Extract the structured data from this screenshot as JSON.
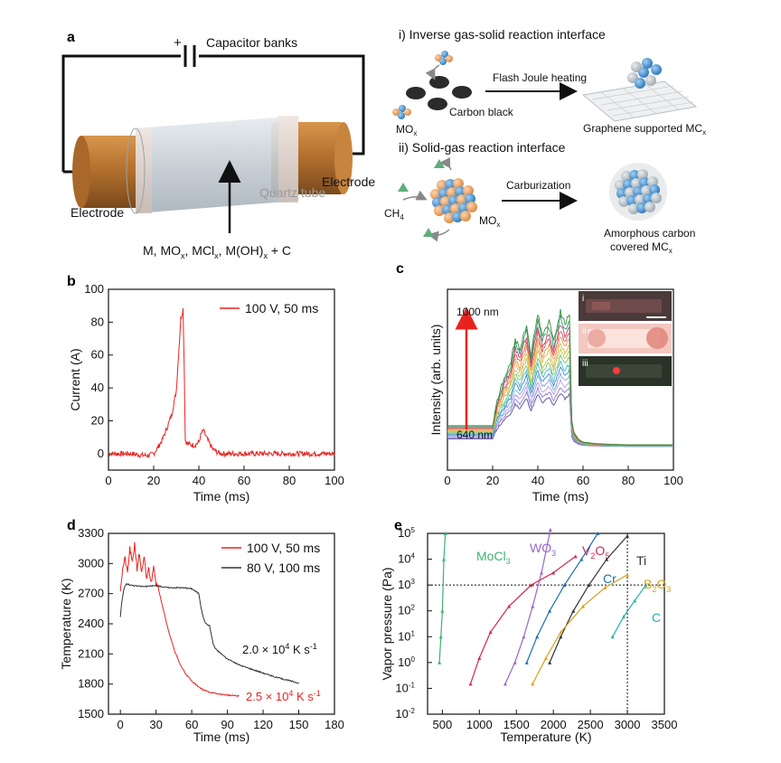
{
  "panel_a": {
    "label": "a",
    "capacitor_label": "Capacitor banks",
    "plus_sign": "+",
    "electrode_left": "Electrode",
    "electrode_right": "Electrode",
    "quartz_tube": "Quartz tube",
    "reactants": "M, MO",
    "reactants_parts": [
      "M, MO",
      "x",
      ", MCl",
      "x",
      ", M(OH)",
      "x",
      " + C"
    ],
    "route_i_title": "i) Inverse gas-solid reaction interface",
    "route_i_arrow": "Flash Joule heating",
    "route_i_carbon": "Carbon black",
    "route_i_mox": "MO",
    "route_i_product": "Graphene supported MC",
    "route_ii_title": "ii) Solid-gas reaction interface",
    "route_ii_arrow": "Carburization",
    "route_ii_ch4": "CH",
    "route_ii_mox": "MO",
    "route_ii_product_1": "Amorphous carbon",
    "route_ii_product_2": "covered MC",
    "sub_x": "x",
    "sub_4": "4",
    "colors": {
      "copper": "#b5722f",
      "tube": "#c9d1d8",
      "blue": "#3d8bd1",
      "orange": "#e9a46a",
      "dark": "#222222"
    }
  },
  "panel_b": {
    "label": "b"
  },
  "panel_c": {
    "label": "c",
    "top_label": "1000 nm",
    "bottom_label": "640 nm",
    "insets": [
      "i",
      "ii",
      "iii"
    ]
  },
  "panel_d": {
    "label": "d"
  },
  "panel_e": {
    "label": "e"
  },
  "chart_data": [
    {
      "id": "b",
      "type": "line",
      "xlabel": "Time (ms)",
      "ylabel": "Current (A)",
      "xlim": [
        0,
        100
      ],
      "ylim": [
        -10,
        100
      ],
      "xticks": [
        0,
        20,
        40,
        60,
        80,
        100
      ],
      "yticks": [
        0,
        20,
        40,
        60,
        80,
        100
      ],
      "series": [
        {
          "name": "100 V, 50 ms",
          "color": "#e8231f",
          "x": [
            0,
            5,
            10,
            15,
            18,
            20,
            22,
            24,
            26,
            28,
            30,
            31,
            32,
            33,
            33.5,
            34,
            35,
            38,
            40,
            41,
            42,
            43,
            44,
            46,
            48,
            50,
            55,
            60,
            70,
            80,
            90,
            100
          ],
          "y": [
            0,
            0,
            0,
            -1,
            -1,
            0,
            4,
            9,
            16,
            24,
            38,
            60,
            82,
            88,
            55,
            8,
            6,
            5,
            7,
            12,
            14,
            11,
            8,
            3,
            1,
            0,
            0,
            0,
            0,
            0,
            0,
            0
          ]
        }
      ]
    },
    {
      "id": "c",
      "type": "line",
      "xlabel": "Time (ms)",
      "ylabel": "Intensity (arb. units)",
      "xlim": [
        0,
        100
      ],
      "xticks": [
        0,
        20,
        40,
        60,
        80,
        100
      ],
      "series_count": 14,
      "x": [
        0,
        10,
        20,
        22,
        25,
        28,
        30,
        32,
        35,
        37,
        40,
        42,
        45,
        47,
        50,
        52,
        54,
        55,
        56,
        58,
        60,
        65,
        70,
        80,
        90,
        100
      ],
      "profile": [
        0.16,
        0.16,
        0.16,
        0.35,
        0.5,
        0.62,
        0.8,
        0.72,
        0.9,
        0.68,
        0.98,
        0.82,
        0.92,
        0.78,
        1.0,
        0.9,
        0.98,
        0.2,
        0.11,
        0.06,
        0.04,
        0.03,
        0.025,
        0.02,
        0.02,
        0.02
      ],
      "colors": [
        "#5a4aa0",
        "#8a7bd0",
        "#b59ce0",
        "#7aa9d8",
        "#3b86c6",
        "#4cb8c4",
        "#7ac06c",
        "#b8c550",
        "#e0b84a",
        "#e98f4b",
        "#d9573f",
        "#c23c7d",
        "#2f9e6a",
        "#3a8f3a"
      ]
    },
    {
      "id": "d",
      "type": "line",
      "xlabel": "Time (ms)",
      "ylabel": "Temperature (K)",
      "xlim": [
        -10,
        180
      ],
      "ylim": [
        1500,
        3300
      ],
      "xticks": [
        0,
        30,
        60,
        90,
        120,
        150,
        180
      ],
      "yticks": [
        1500,
        1800,
        2100,
        2400,
        2700,
        3000,
        3300
      ],
      "series": [
        {
          "name": "100 V, 50 ms",
          "color": "#e8231f",
          "x": [
            0,
            2,
            4,
            6,
            8,
            10,
            12,
            14,
            16,
            18,
            20,
            22,
            24,
            26,
            28,
            30,
            32,
            35,
            40,
            45,
            50,
            55,
            60,
            65,
            70,
            75,
            80,
            90,
            100
          ],
          "y": [
            2750,
            2950,
            3050,
            2900,
            3150,
            3000,
            3200,
            2950,
            3100,
            2900,
            3050,
            2850,
            2950,
            2800,
            3000,
            2800,
            2750,
            2600,
            2350,
            2150,
            2000,
            1900,
            1830,
            1780,
            1740,
            1720,
            1705,
            1690,
            1680
          ]
        },
        {
          "name": "80 V, 100 ms",
          "color": "#333333",
          "x": [
            0,
            1,
            3,
            5,
            10,
            20,
            30,
            40,
            50,
            60,
            66,
            68,
            70,
            72,
            75,
            78,
            80,
            85,
            90,
            100,
            110,
            120,
            130,
            140,
            150
          ],
          "y": [
            2470,
            2600,
            2750,
            2800,
            2780,
            2770,
            2780,
            2760,
            2760,
            2750,
            2700,
            2550,
            2450,
            2400,
            2380,
            2200,
            2150,
            2100,
            2050,
            1990,
            1950,
            1910,
            1870,
            1840,
            1810
          ]
        }
      ],
      "annotations": [
        {
          "text": "2.0 × 10",
          "sup": "4",
          "rest": " K s",
          "sup2": "-1",
          "color": "#111111"
        },
        {
          "text": "2.5 × 10",
          "sup": "4",
          "rest": " K s",
          "sup2": "-1",
          "color": "#e8231f"
        }
      ]
    },
    {
      "id": "e",
      "type": "line",
      "scale_y": "log",
      "xlabel": "Temperature (K)",
      "ylabel": "Vapor pressure (Pa)",
      "xlim": [
        300,
        3500
      ],
      "ylim": [
        0.01,
        100000
      ],
      "xticks": [
        500,
        1000,
        1500,
        2000,
        2500,
        3000,
        3500
      ],
      "ytick_labels": [
        "10",
        "10",
        "10",
        "10",
        "10",
        "10",
        "10",
        "10"
      ],
      "ytick_exponents": [
        "-2",
        "-1",
        "0",
        "1",
        "2",
        "3",
        "4",
        "5"
      ],
      "ref_hline": 1000,
      "ref_vline": 3000,
      "series": [
        {
          "name": "MoCl",
          "sub": "3",
          "color": "#3cb371",
          "x": [
            460,
            480,
            500,
            520,
            540
          ],
          "y": [
            1,
            10,
            100,
            10000,
            100000
          ]
        },
        {
          "name": "WO",
          "sub": "3",
          "color": "#9966cc",
          "x": [
            1350,
            1480,
            1600,
            1720,
            1840,
            1960
          ],
          "y": [
            0.15,
            1,
            10,
            150,
            3000,
            140000
          ]
        },
        {
          "name": "V",
          "sub": "2",
          "name2": "O",
          "sub2": "5",
          "color": "#d6264a",
          "x": [
            880,
            1000,
            1150,
            1400,
            1700,
            2000,
            2300
          ],
          "y": [
            0.15,
            1.5,
            15,
            150,
            1000,
            3000,
            13000
          ]
        },
        {
          "name": "Cr",
          "color": "#1f6fb5",
          "x": [
            1640,
            1780,
            1950,
            2150,
            2380,
            2600
          ],
          "y": [
            1,
            10,
            100,
            1000,
            10000,
            100000
          ]
        },
        {
          "name": "Ti",
          "color": "#333333",
          "x": [
            1950,
            2100,
            2270,
            2480,
            2720,
            3000
          ],
          "y": [
            1,
            10,
            100,
            1000,
            10000,
            80000
          ]
        },
        {
          "name": "B",
          "sub": "2",
          "name2": "O",
          "sub2": "3",
          "color": "#d8a21a",
          "x": [
            1720,
            1900,
            2100,
            2400,
            2700,
            3000
          ],
          "y": [
            0.15,
            1.5,
            15,
            150,
            800,
            2500
          ]
        },
        {
          "name": "C",
          "color": "#20b2aa",
          "x": [
            2800,
            2950,
            3100,
            3250
          ],
          "y": [
            10,
            60,
            250,
            1000
          ]
        }
      ]
    }
  ]
}
